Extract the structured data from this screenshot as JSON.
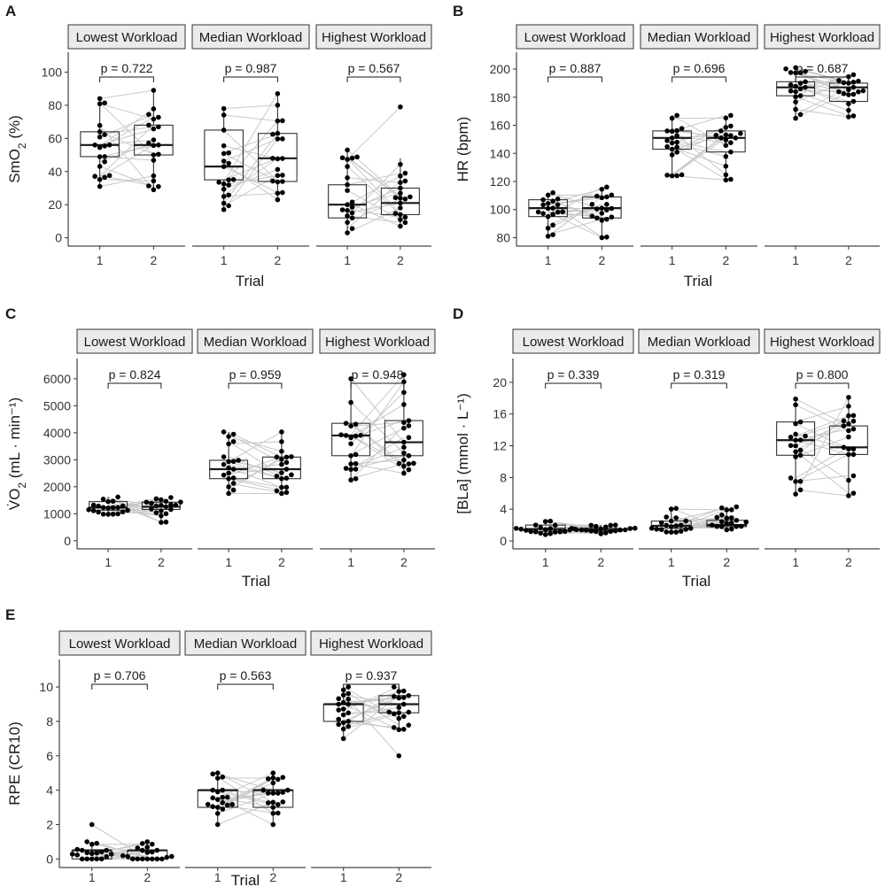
{
  "chart_data": [
    {
      "panel": "A",
      "type": "box",
      "ylabel": "SmO",
      "ylabel_sub": "2",
      "ylabel_suffix": " (%)",
      "xlabel": "Trial",
      "ylim": [
        -5,
        112
      ],
      "yticks": [
        0,
        20,
        40,
        60,
        80,
        100
      ],
      "ytick_labels": [
        "0",
        "20",
        "40",
        "60",
        "80",
        "100"
      ],
      "trial_labels": [
        "1",
        "2"
      ],
      "facets": [
        {
          "label": "Lowest Workload",
          "p_label": "p = 0.722",
          "trials": [
            {
              "q1": 49,
              "median": 56,
              "q3": 64,
              "wlo": 31,
              "whi": 84,
              "n": 20,
              "min": 31,
              "max": 84
            },
            {
              "q1": 50,
              "median": 56,
              "q3": 68,
              "wlo": 29,
              "whi": 89,
              "n": 20,
              "min": 29,
              "max": 89
            }
          ]
        },
        {
          "label": "Median Workload",
          "p_label": "p = 0.987",
          "trials": [
            {
              "q1": 35,
              "median": 43,
              "q3": 65,
              "wlo": 17,
              "whi": 78,
              "n": 20,
              "min": 17,
              "max": 78
            },
            {
              "q1": 34,
              "median": 48,
              "q3": 63,
              "wlo": 23,
              "whi": 87,
              "n": 20,
              "min": 23,
              "max": 87
            }
          ]
        },
        {
          "label": "Highest Workload",
          "p_label": "p = 0.567",
          "trials": [
            {
              "q1": 12,
              "median": 20,
              "q3": 32,
              "wlo": 3,
              "whi": 53,
              "n": 20,
              "min": 3,
              "max": 53
            },
            {
              "q1": 14,
              "median": 21,
              "q3": 30,
              "wlo": 7,
              "whi": 48,
              "n": 20,
              "min": 7,
              "max": 79
            }
          ]
        }
      ]
    },
    {
      "panel": "B",
      "type": "box",
      "ylabel": "HR (bpm)",
      "ylabel_sub": "",
      "ylabel_suffix": "",
      "xlabel": "Trial",
      "ylim": [
        74,
        212
      ],
      "yticks": [
        80,
        100,
        120,
        140,
        160,
        180,
        200
      ],
      "ytick_labels": [
        "80",
        "100",
        "120",
        "140",
        "160",
        "180",
        "200"
      ],
      "trial_labels": [
        "1",
        "2"
      ],
      "facets": [
        {
          "label": "Lowest Workload",
          "p_label": "p = 0.887",
          "trials": [
            {
              "q1": 95,
              "median": 101,
              "q3": 107,
              "wlo": 81,
              "whi": 112,
              "n": 20,
              "min": 81,
              "max": 112
            },
            {
              "q1": 94,
              "median": 101,
              "q3": 109,
              "wlo": 80,
              "whi": 116,
              "n": 20,
              "min": 80,
              "max": 116
            }
          ]
        },
        {
          "label": "Median Workload",
          "p_label": "p = 0.696",
          "trials": [
            {
              "q1": 143,
              "median": 151,
              "q3": 156,
              "wlo": 124,
              "whi": 167,
              "n": 20,
              "min": 124,
              "max": 167
            },
            {
              "q1": 141,
              "median": 151,
              "q3": 156,
              "wlo": 121,
              "whi": 167,
              "n": 20,
              "min": 121,
              "max": 167
            }
          ]
        },
        {
          "label": "Highest Workload",
          "p_label": "p = 0.687",
          "trials": [
            {
              "q1": 181,
              "median": 187,
              "q3": 191,
              "wlo": 165,
              "whi": 201,
              "n": 20,
              "min": 165,
              "max": 201
            },
            {
              "q1": 177,
              "median": 187,
              "q3": 190,
              "wlo": 166,
              "whi": 196,
              "n": 20,
              "min": 166,
              "max": 196
            }
          ]
        }
      ]
    },
    {
      "panel": "C",
      "type": "box",
      "ylabel": "V̇O",
      "ylabel_sub": "2",
      "ylabel_suffix": " (mL · min⁻¹)",
      "xlabel": "Trial",
      "ylim": [
        -300,
        6750
      ],
      "yticks": [
        0,
        1000,
        2000,
        3000,
        4000,
        5000,
        6000
      ],
      "ytick_labels": [
        "0",
        "1000",
        "2000",
        "3000",
        "4000",
        "5000",
        "6000"
      ],
      "trial_labels": [
        "1",
        "2"
      ],
      "facets": [
        {
          "label": "Lowest Workload",
          "p_label": "p = 0.824",
          "trials": [
            {
              "q1": 1130,
              "median": 1230,
              "q3": 1450,
              "wlo": 980,
              "whi": 1620,
              "n": 20,
              "min": 980,
              "max": 1620
            },
            {
              "q1": 1160,
              "median": 1260,
              "q3": 1430,
              "wlo": 680,
              "whi": 1600,
              "n": 20,
              "min": 680,
              "max": 1600
            }
          ]
        },
        {
          "label": "Median Workload",
          "p_label": "p = 0.959",
          "trials": [
            {
              "q1": 2300,
              "median": 2650,
              "q3": 2980,
              "wlo": 1750,
              "whi": 4030,
              "n": 20,
              "min": 1750,
              "max": 4030
            },
            {
              "q1": 2300,
              "median": 2650,
              "q3": 3100,
              "wlo": 1750,
              "whi": 4030,
              "n": 20,
              "min": 1750,
              "max": 4030
            }
          ]
        },
        {
          "label": "Highest Workload",
          "p_label": "p = 0.948",
          "trials": [
            {
              "q1": 3150,
              "median": 3900,
              "q3": 4350,
              "wlo": 2250,
              "whi": 6000,
              "n": 20,
              "min": 2250,
              "max": 6000
            },
            {
              "q1": 3150,
              "median": 3650,
              "q3": 4450,
              "wlo": 2500,
              "whi": 6150,
              "n": 20,
              "min": 2500,
              "max": 6150
            }
          ]
        }
      ]
    },
    {
      "panel": "D",
      "type": "box",
      "ylabel": "[BLa] (mmol · L⁻¹)",
      "ylabel_sub": "",
      "ylabel_suffix": "",
      "xlabel": "Trial",
      "ylim": [
        -1,
        23
      ],
      "yticks": [
        0,
        4,
        8,
        12,
        16,
        20
      ],
      "ytick_labels": [
        "0",
        "4",
        "8",
        "12",
        "16",
        "20"
      ],
      "trial_labels": [
        "1",
        "2"
      ],
      "facets": [
        {
          "label": "Lowest Workload",
          "p_label": "p = 0.339",
          "trials": [
            {
              "q1": 1.2,
              "median": 1.5,
              "q3": 2.0,
              "wlo": 0.8,
              "whi": 2.5,
              "n": 20,
              "min": 0.8,
              "max": 2.5
            },
            {
              "q1": 1.2,
              "median": 1.4,
              "q3": 1.6,
              "wlo": 0.9,
              "whi": 2.0,
              "n": 20,
              "min": 0.9,
              "max": 2.0
            }
          ]
        },
        {
          "label": "Median Workload",
          "p_label": "p = 0.319",
          "trials": [
            {
              "q1": 1.6,
              "median": 1.9,
              "q3": 2.5,
              "wlo": 1.1,
              "whi": 4.1,
              "n": 20,
              "min": 1.1,
              "max": 4.1
            },
            {
              "q1": 1.8,
              "median": 2.0,
              "q3": 2.6,
              "wlo": 1.4,
              "whi": 4.3,
              "n": 20,
              "min": 1.4,
              "max": 4.3
            }
          ]
        },
        {
          "label": "Highest Workload",
          "p_label": "p = 0.800",
          "trials": [
            {
              "q1": 10.8,
              "median": 12.7,
              "q3": 15.0,
              "wlo": 5.9,
              "whi": 17.9,
              "n": 20,
              "min": 5.9,
              "max": 17.9
            },
            {
              "q1": 10.9,
              "median": 11.8,
              "q3": 14.5,
              "wlo": 5.7,
              "whi": 18.1,
              "n": 20,
              "min": 5.7,
              "max": 18.1
            }
          ]
        }
      ]
    },
    {
      "panel": "E",
      "type": "box",
      "ylabel": "RPE (CR10)",
      "ylabel_sub": "",
      "ylabel_suffix": "",
      "xlabel": "Trial",
      "ylim": [
        -0.5,
        11.6
      ],
      "yticks": [
        0,
        2,
        4,
        6,
        8,
        10
      ],
      "ytick_labels": [
        "0",
        "2",
        "4",
        "6",
        "8",
        "10"
      ],
      "trial_labels": [
        "1",
        "2"
      ],
      "facets": [
        {
          "label": "Lowest Workload",
          "p_label": "p = 0.706",
          "trials": [
            {
              "q1": 0,
              "median": 0.5,
              "q3": 0.5,
              "wlo": 0,
              "whi": 1,
              "n": 20,
              "min": 0,
              "max": 2
            },
            {
              "q1": 0,
              "median": 0.5,
              "q3": 0.5,
              "wlo": 0,
              "whi": 1,
              "n": 20,
              "min": 0,
              "max": 1
            }
          ]
        },
        {
          "label": "Median Workload",
          "p_label": "p = 0.563",
          "trials": [
            {
              "q1": 3,
              "median": 4,
              "q3": 4,
              "wlo": 2,
              "whi": 5,
              "n": 20,
              "min": 2,
              "max": 5
            },
            {
              "q1": 3,
              "median": 4,
              "q3": 4,
              "wlo": 2,
              "whi": 5,
              "n": 20,
              "min": 2,
              "max": 5
            }
          ]
        },
        {
          "label": "Highest Workload",
          "p_label": "p = 0.937",
          "trials": [
            {
              "q1": 8,
              "median": 9,
              "q3": 9,
              "wlo": 7,
              "whi": 10,
              "n": 20,
              "min": 7,
              "max": 10
            },
            {
              "q1": 8.5,
              "median": 9,
              "q3": 9.5,
              "wlo": 7.5,
              "whi": 10,
              "n": 20,
              "min": 6,
              "max": 10
            }
          ]
        }
      ]
    }
  ]
}
